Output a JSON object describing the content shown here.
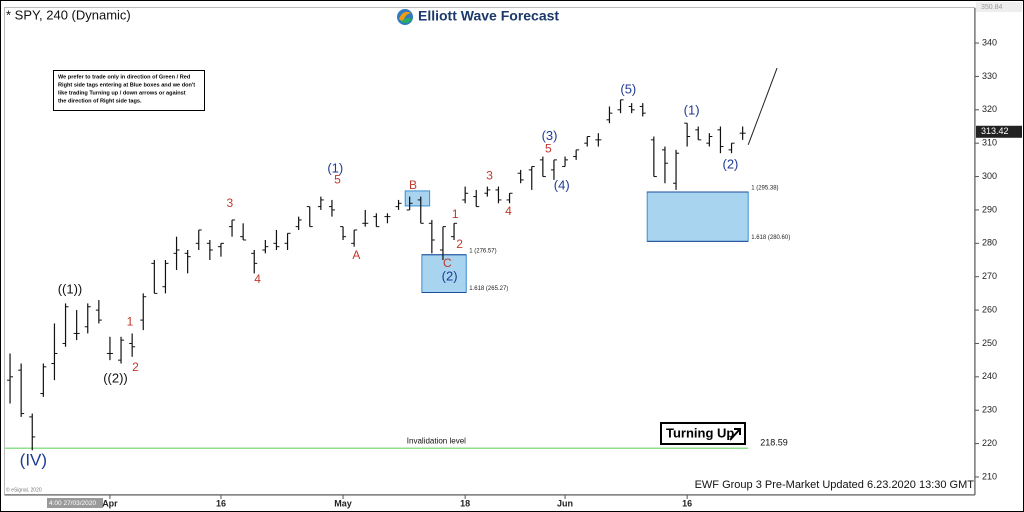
{
  "header": {
    "symbol": "* SPY, 240 (Dynamic)",
    "logo": "Elliott Wave Forecast",
    "note": [
      "We prefer to trade only in direction of Green / Red",
      "Right side tags entering at Blue boxes and we don't",
      "like trading Turning up / down arrows or against",
      "the direction of Right side tags."
    ],
    "signal": "Turning Up",
    "footer": "EWF Group 3 Pre-Market Updated 6.23.2020 13:30 GMT",
    "copyright": "© eSignal, 2020",
    "cursor_date": "4:00 27/03/2020"
  },
  "chart_data": {
    "type": "ohlc",
    "color": "#111111",
    "categories": [
      null,
      null,
      null,
      null,
      null,
      null,
      null,
      null,
      null,
      "Apr",
      null,
      null,
      null,
      null,
      null,
      null,
      null,
      null,
      null,
      "16",
      null,
      null,
      null,
      null,
      null,
      null,
      null,
      null,
      null,
      null,
      "May",
      null,
      null,
      null,
      null,
      null,
      null,
      null,
      null,
      null,
      null,
      "18",
      null,
      null,
      null,
      null,
      null,
      null,
      null,
      null,
      "Jun",
      null,
      null,
      null,
      null,
      null,
      null,
      null,
      null,
      null,
      null,
      "16",
      null,
      null,
      null,
      null,
      null
    ],
    "open": [
      239,
      242,
      228,
      235,
      244,
      250,
      253,
      255,
      260,
      247,
      245,
      250,
      257,
      274,
      267,
      277,
      277,
      280,
      280,
      279,
      285,
      282,
      277,
      278,
      280,
      280,
      285,
      291,
      291,
      291,
      285,
      280,
      286,
      288,
      288,
      291,
      290,
      293,
      286,
      278,
      282,
      293,
      294,
      295,
      296,
      293,
      301,
      302,
      305,
      302,
      303,
      306,
      310,
      311,
      317,
      320,
      321,
      321,
      311,
      308,
      298,
      316,
      314,
      310,
      314,
      308,
      313
    ],
    "high": [
      247,
      244,
      229,
      244,
      256,
      262,
      260,
      262,
      263,
      252,
      252,
      253,
      265,
      275,
      275,
      282,
      278,
      284,
      281,
      280,
      287,
      286,
      278,
      281,
      284,
      283,
      288,
      291,
      294,
      293,
      285,
      284,
      290,
      289,
      289,
      293,
      294,
      294,
      287,
      285,
      286,
      297,
      296,
      297,
      297,
      295,
      302,
      303,
      306,
      305,
      306,
      308,
      312,
      313,
      321,
      323,
      322,
      322,
      312,
      309,
      308,
      316,
      315,
      313,
      315,
      310,
      315
    ],
    "low": [
      232,
      228,
      218,
      234,
      239,
      249,
      251,
      253,
      256,
      245,
      244,
      246,
      254,
      265,
      265,
      272,
      271,
      278,
      275,
      276,
      282,
      281,
      271,
      277,
      278,
      278,
      284,
      285,
      290,
      288,
      281,
      279,
      285,
      285,
      286,
      290,
      290,
      286,
      277,
      275,
      281,
      292,
      291,
      294,
      292,
      292,
      298,
      296,
      300,
      299,
      303,
      305,
      309,
      309,
      316,
      319,
      319,
      318,
      300,
      298,
      296,
      309,
      311,
      309,
      307,
      307,
      311
    ],
    "close": [
      240,
      229,
      222,
      243,
      247,
      261,
      253,
      261,
      257,
      247,
      251,
      249,
      264,
      265,
      274,
      278,
      276,
      284,
      278,
      280,
      287,
      281,
      274,
      279,
      279,
      283,
      287,
      285,
      293,
      290,
      282,
      284,
      286,
      285,
      288,
      292,
      292,
      286,
      281,
      285,
      286,
      295,
      291,
      296,
      293,
      295,
      299,
      303,
      300,
      305,
      305,
      308,
      312,
      311,
      319,
      323,
      320,
      319,
      300,
      304,
      307,
      312,
      311,
      312,
      309,
      310,
      313
    ],
    "ylim": [
      204.6,
      350.5
    ],
    "yticks": [
      210,
      220,
      230,
      240,
      250,
      260,
      270,
      280,
      290,
      300,
      310,
      320,
      330,
      340
    ],
    "last_price": 313.42,
    "top_price": 350.84,
    "zones": [
      {
        "x0": 35.6,
        "x1": 37.8,
        "low": 291.2,
        "high": 295.7,
        "color": "#a8d4f0"
      },
      {
        "x0": 37.1,
        "x1": 41.1,
        "low": 265.27,
        "high": 276.57,
        "color": "#a8d4f0",
        "high_label": "1 (276.57)",
        "low_label": "1.618 (265.27)"
      },
      {
        "x0": 57.4,
        "x1": 66.5,
        "low": 280.6,
        "high": 295.38,
        "color": "#a8d4f0",
        "high_label": "1 (295.38)",
        "low_label": "1.618 (280.60)"
      }
    ],
    "hline": {
      "value": 218.59,
      "x": [
        -0.5,
        66.5
      ],
      "note": "Invalidation level",
      "color": "#8fe08f"
    },
    "projection": {
      "x": [
        66.5,
        69.1
      ],
      "y": [
        309.5,
        332.5
      ]
    },
    "annotations": [
      {
        "text": "(IV)",
        "x": 2.1,
        "y": 214.8,
        "color": "#1f3a93",
        "size": 17
      },
      {
        "text": "((1))",
        "x": 5.4,
        "y": 266,
        "color": "#111111",
        "size": 13
      },
      {
        "text": "((2))",
        "x": 9.5,
        "y": 239.4,
        "color": "#111111",
        "size": 13
      },
      {
        "text": "1",
        "x": 10.8,
        "y": 256.4,
        "color": "#c0392b",
        "size": 12
      },
      {
        "text": "2",
        "x": 11.3,
        "y": 242.7,
        "color": "#c0392b",
        "size": 12
      },
      {
        "text": "3",
        "x": 19.8,
        "y": 291.8,
        "color": "#c0392b",
        "size": 12
      },
      {
        "text": "4",
        "x": 22.3,
        "y": 269,
        "color": "#c0392b",
        "size": 12
      },
      {
        "text": "(1)",
        "x": 29.3,
        "y": 302.3,
        "color": "#1f3a93",
        "size": 13
      },
      {
        "text": "5",
        "x": 29.5,
        "y": 298.8,
        "color": "#c0392b",
        "size": 12
      },
      {
        "text": "A",
        "x": 31.2,
        "y": 276.2,
        "color": "#c0392b",
        "size": 12
      },
      {
        "text": "B",
        "x": 36.3,
        "y": 297.2,
        "color": "#c0392b",
        "size": 12
      },
      {
        "text": "1",
        "x": 40.1,
        "y": 288.5,
        "color": "#c0392b",
        "size": 12
      },
      {
        "text": "2",
        "x": 40.5,
        "y": 279.5,
        "color": "#c0392b",
        "size": 12
      },
      {
        "text": "C",
        "x": 39.4,
        "y": 273.8,
        "color": "#c0392b",
        "size": 12
      },
      {
        "text": "(2)",
        "x": 39.6,
        "y": 269.9,
        "color": "#1f3a93",
        "size": 13
      },
      {
        "text": "3",
        "x": 43.2,
        "y": 300,
        "color": "#c0392b",
        "size": 12
      },
      {
        "text": "4",
        "x": 44.9,
        "y": 289.4,
        "color": "#c0392b",
        "size": 12
      },
      {
        "text": "(3)",
        "x": 48.6,
        "y": 312,
        "color": "#1f3a93",
        "size": 13
      },
      {
        "text": "5",
        "x": 48.5,
        "y": 308.2,
        "color": "#c0392b",
        "size": 12
      },
      {
        "text": "(4)",
        "x": 49.7,
        "y": 297.2,
        "color": "#1f3a93",
        "size": 13
      },
      {
        "text": "(5)",
        "x": 55.7,
        "y": 325.9,
        "color": "#1f3a93",
        "size": 13
      },
      {
        "text": "(1)",
        "x": 61.4,
        "y": 319.6,
        "color": "#1f3a93",
        "size": 13
      },
      {
        "text": "(2)",
        "x": 64.9,
        "y": 303.5,
        "color": "#1f3a93",
        "size": 13
      }
    ]
  }
}
